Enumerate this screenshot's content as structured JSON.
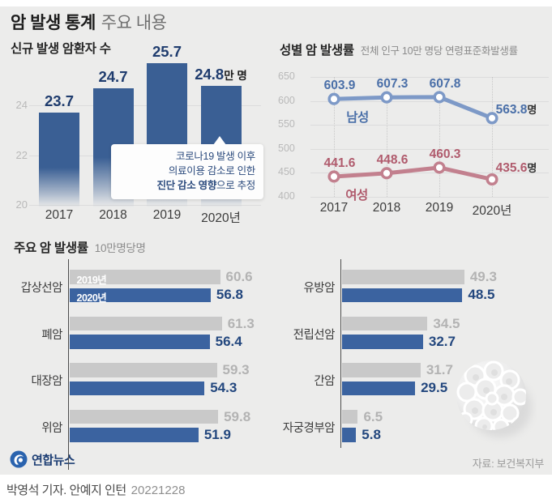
{
  "header": {
    "title_strong": "암 발생 통계",
    "title_sub": "주요 내용"
  },
  "footer": {
    "logo_text": "연합뉴스",
    "source": "자료: 보건복지부",
    "byline": "박영석 기자. 안예지 인턴",
    "date": "20221228"
  },
  "colors": {
    "background": "#ececeb",
    "bar_blue": "#3a5f94",
    "bar_gray": "#c9c9c9",
    "hbar_blue": "#3b63a0",
    "value_blue": "#23477e",
    "value_gray": "#b3b3b3",
    "male_line": "#7d99c7",
    "male_label": "#4a6fa8",
    "female_line": "#c2808e",
    "female_label": "#b05b6d",
    "logo_blue": "#2a63ae"
  },
  "chart_data": [
    {
      "type": "bar",
      "title": "신규 발생 암환자 수",
      "unit_suffix": "만 명",
      "categories": [
        "2017",
        "2018",
        "2019",
        "2020년"
      ],
      "values": [
        23.7,
        24.7,
        25.7,
        24.8
      ],
      "ylim": [
        20,
        26
      ],
      "yticks": [
        24,
        22,
        20
      ],
      "grid": true,
      "callout": {
        "line1": "코로나19 발생 이후",
        "line2": "의료이용 감소로 인한",
        "line3_bold": "진단 감소 영향",
        "line3_rest": "으로 추정"
      }
    },
    {
      "type": "line",
      "title": "성별 암 발생률",
      "subtitle": "전체 인구 10만 명당 연령표준화발생률",
      "categories": [
        "2017",
        "2018",
        "2019",
        "2020년"
      ],
      "ylim": [
        400,
        650
      ],
      "yticks": [
        650,
        600,
        550,
        500,
        450,
        400
      ],
      "unit_suffix": "명",
      "grid": true,
      "legend_position": "inline",
      "series": [
        {
          "name": "남성",
          "values": [
            603.9,
            607.3,
            607.8,
            563.8
          ],
          "color": "#7d99c7",
          "label_color": "#4a6fa8"
        },
        {
          "name": "여성",
          "values": [
            441.6,
            448.6,
            460.3,
            435.6
          ],
          "color": "#c2808e",
          "label_color": "#b05b6d"
        }
      ]
    },
    {
      "type": "bar",
      "orientation": "horizontal",
      "title": "주요 암 발생률",
      "subtitle": "10만명당명",
      "legend": [
        "2019년",
        "2020년"
      ],
      "left_groups": [
        {
          "label": "갑상선암",
          "values": [
            60.6,
            56.8
          ]
        },
        {
          "label": "폐암",
          "values": [
            61.3,
            56.4
          ]
        },
        {
          "label": "대장암",
          "values": [
            59.3,
            54.3
          ]
        },
        {
          "label": "위암",
          "values": [
            59.8,
            51.9
          ]
        }
      ],
      "right_groups": [
        {
          "label": "유방암",
          "values": [
            49.3,
            48.5
          ]
        },
        {
          "label": "전립선암",
          "values": [
            34.5,
            32.7
          ]
        },
        {
          "label": "간암",
          "values": [
            31.7,
            29.5
          ]
        },
        {
          "label": "자궁경부암",
          "values": [
            6.5,
            5.8
          ]
        }
      ]
    }
  ]
}
